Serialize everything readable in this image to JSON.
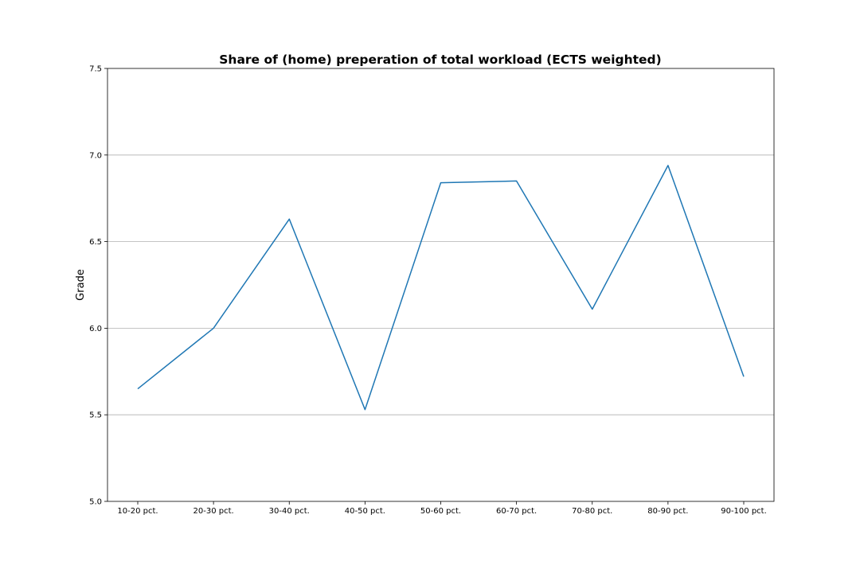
{
  "chart_data": {
    "type": "line",
    "title": "Share of (home) preperation of total workload (ECTS weighted)",
    "xlabel": "",
    "ylabel": "Grade",
    "categories": [
      "10-20 pct.",
      "20-30 pct.",
      "30-40 pct.",
      "40-50 pct.",
      "50-60 pct.",
      "60-70 pct.",
      "70-80 pct.",
      "80-90 pct.",
      "90-100 pct."
    ],
    "series": [
      {
        "values": [
          5.65,
          6.0,
          6.63,
          5.53,
          6.84,
          6.85,
          6.11,
          6.94,
          5.72
        ],
        "color": "#1f77b4"
      }
    ],
    "ylim": [
      5.0,
      7.5
    ],
    "yticks": [
      "5.0",
      "5.5",
      "6.0",
      "6.5",
      "7.0",
      "7.5"
    ],
    "grid": "y-axis on"
  }
}
